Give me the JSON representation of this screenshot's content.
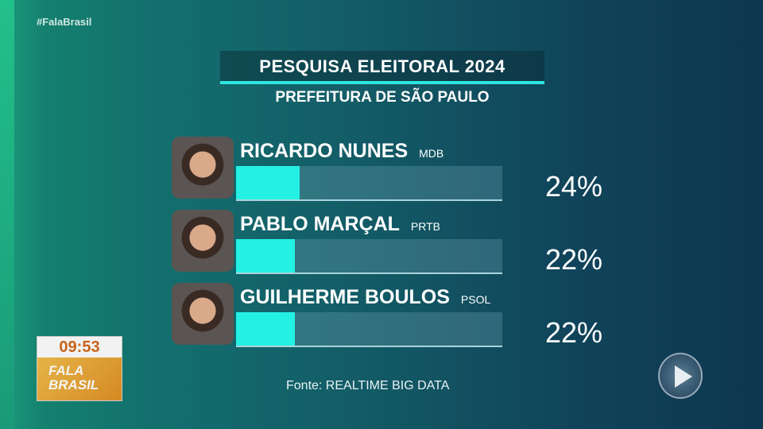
{
  "hashtag": "#FalaBrasil",
  "title": "PESQUISA ELEITORAL 2024",
  "subtitle": "PREFEITURA DE SÃO PAULO",
  "chart_data": {
    "type": "bar",
    "title": "PESQUISA ELEITORAL 2024",
    "subtitle": "PREFEITURA DE SÃO PAULO",
    "categories": [
      "RICARDO NUNES",
      "PABLO MARÇAL",
      "GUILHERME BOULOS"
    ],
    "parties": [
      "MDB",
      "PRTB",
      "PSOL"
    ],
    "values": [
      24,
      22,
      22
    ],
    "labels": [
      "24%",
      "22%",
      "22%"
    ],
    "ylim": [
      0,
      100
    ],
    "bar_color": "#25f0e4",
    "source": "Fonte: REALTIME BIG DATA"
  },
  "clock": {
    "time": "09:53",
    "logo": "FALA BRASIL"
  }
}
